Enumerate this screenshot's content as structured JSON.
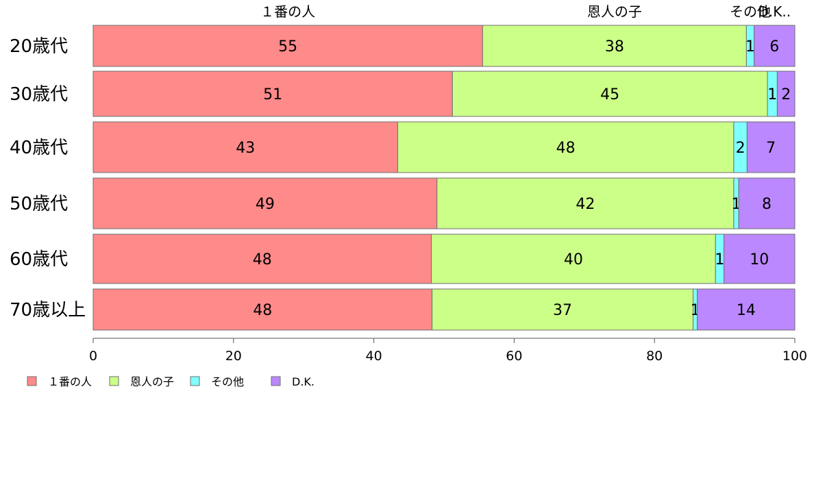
{
  "chart_data": {
    "type": "bar",
    "orientation": "horizontal",
    "stacked": true,
    "categories": [
      "20歳代",
      "30歳代",
      "40歳代",
      "50歳代",
      "60歳代",
      "70歳以上"
    ],
    "series": [
      {
        "name": "1番の人",
        "color": "#ff8a8a",
        "values": [
          55.5,
          51.2,
          43.4,
          49.0,
          48.2,
          48.3
        ]
      },
      {
        "name": "恩人の子",
        "color": "#ccff88",
        "values": [
          37.6,
          44.9,
          47.9,
          42.3,
          40.5,
          37.2
        ]
      },
      {
        "name": "その他",
        "color": "#80ffff",
        "values": [
          1.1,
          1.4,
          1.9,
          0.7,
          1.2,
          0.6
        ]
      },
      {
        "name": "D.K.",
        "color": "#bb88ff",
        "values": [
          5.8,
          2.5,
          6.8,
          8.0,
          10.1,
          13.9
        ]
      }
    ],
    "data_labels": [
      [
        "55",
        "38",
        "1",
        "6"
      ],
      [
        "51",
        "45",
        "1",
        "2"
      ],
      [
        "43",
        "48",
        "2",
        "7"
      ],
      [
        "49",
        "42",
        "1",
        "8"
      ],
      [
        "48",
        "40",
        "1",
        "10"
      ],
      [
        "48",
        "37",
        "1",
        "14"
      ]
    ],
    "top_labels": [
      "１番の人",
      "恩人の子",
      "その他",
      "D.K.."
    ],
    "legend_labels": [
      "１番の人",
      "恩人の子",
      "その他",
      "D.K."
    ],
    "xlim": [
      0,
      100
    ],
    "xticks": [
      0,
      20,
      40,
      60,
      80,
      100
    ],
    "legend_position": "bottom-left",
    "grid": false
  }
}
